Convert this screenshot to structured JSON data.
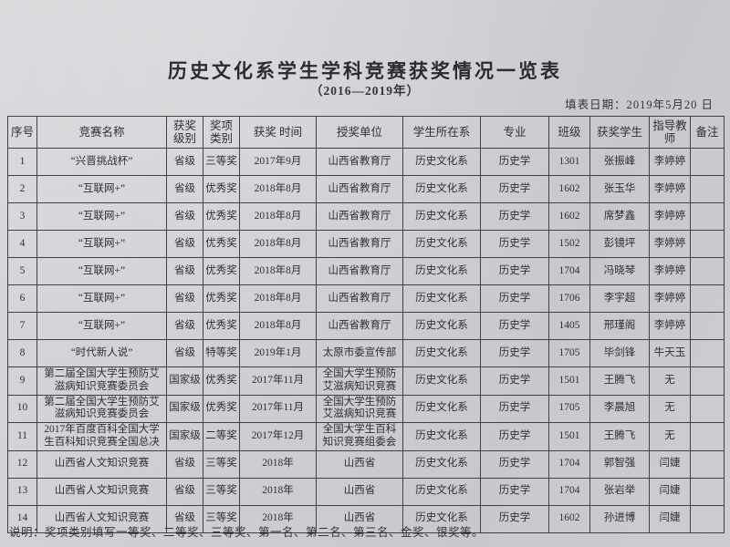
{
  "page": {
    "title": "历史文化系学生学科竞赛获奖情况一览表",
    "subtitle": "（2016—2019年）",
    "fill_date": "填表日期：2019年5月20 日",
    "footnote": "说明：奖项类别填写一等奖、二等奖、三等奖、第一名、第二名、第三名、金奖、银奖等。"
  },
  "table": {
    "column_keys": [
      "index",
      "competition",
      "level",
      "category",
      "time",
      "awarding-unit",
      "department",
      "major",
      "class",
      "student",
      "advisor",
      "remarks"
    ],
    "headers": [
      "序号",
      "竞赛名称",
      "获奖级别",
      "奖项类别",
      "获奖 时间",
      "授奖单位",
      "学生所在系",
      "专业",
      "班级",
      "获奖学生",
      "指导教师",
      "备注"
    ],
    "rows": [
      [
        "1",
        "“兴晋挑战杯”",
        "省级",
        "三等奖",
        "2017年9月",
        "山西省教育厅",
        "历史文化系",
        "历史学",
        "1301",
        "张振峰",
        "李婷婷",
        ""
      ],
      [
        "2",
        "“互联网+”",
        "省级",
        "优秀奖",
        "2018年8月",
        "山西省教育厅",
        "历史文化系",
        "历史学",
        "1602",
        "张玉华",
        "李婷婷",
        ""
      ],
      [
        "3",
        "“互联网+”",
        "省级",
        "优秀奖",
        "2018年8月",
        "山西省教育厅",
        "历史文化系",
        "历史学",
        "1602",
        "席梦鑫",
        "李婷婷",
        ""
      ],
      [
        "4",
        "“互联网+”",
        "省级",
        "优秀奖",
        "2018年8月",
        "山西省教育厅",
        "历史文化系",
        "历史学",
        "1502",
        "彭镜坪",
        "李婷婷",
        ""
      ],
      [
        "5",
        "“互联网+”",
        "省级",
        "优秀奖",
        "2018年8月",
        "山西省教育厅",
        "历史文化系",
        "历史学",
        "1704",
        "冯晓琴",
        "李婷婷",
        ""
      ],
      [
        "6",
        "“互联网+”",
        "省级",
        "优秀奖",
        "2018年8月",
        "山西省教育厅",
        "历史文化系",
        "历史学",
        "1706",
        "李宇超",
        "李婷婷",
        ""
      ],
      [
        "7",
        "“互联网+”",
        "省级",
        "优秀奖",
        "2018年8月",
        "山西省教育厅",
        "历史文化系",
        "历史学",
        "1405",
        "邢瑾阁",
        "李婷婷",
        ""
      ],
      [
        "8",
        "“时代新人说”",
        "省级",
        "特等奖",
        "2019年1月",
        "太原市委宣传部",
        "历史文化系",
        "历史学",
        "1705",
        "毕剑锋",
        "牛天玉",
        ""
      ],
      [
        "9",
        "第二届全国大学生预防艾滋病知识竞赛委员会",
        "国家级",
        "优秀奖",
        "2017年11月",
        "全国大学生预防艾滋病知识竞赛",
        "历史文化系",
        "历史学",
        "1501",
        "王腾飞",
        "无",
        ""
      ],
      [
        "10",
        "第二届全国大学生预防艾滋病知识竞赛委员会",
        "国家级",
        "优秀奖",
        "2017年11月",
        "全国大学生预防艾滋病知识竞赛",
        "历史文化系",
        "历史学",
        "1705",
        "李晨旭",
        "无",
        ""
      ],
      [
        "11",
        "2017年百度百科全国大学生百科知识竞赛全国总决",
        "国家级",
        "二等奖",
        "2017年12月",
        "全国大学生百科知识竞赛组委会",
        "历史文化系",
        "历史学",
        "1501",
        "王腾飞",
        "无",
        ""
      ],
      [
        "12",
        "山西省人文知识竞赛",
        "省级",
        "三等奖",
        "2018年",
        "山西省",
        "历史文化系",
        "历史学",
        "1704",
        "郭智强",
        "闫婕",
        ""
      ],
      [
        "13",
        "山西省人文知识竞赛",
        "省级",
        "三等奖",
        "2018年",
        "山西省",
        "历史文化系",
        "历史学",
        "1704",
        "张岩举",
        "闫婕",
        ""
      ],
      [
        "14",
        "山西省人文知识竞赛",
        "省级",
        "三等奖",
        "2018年",
        "山西省",
        "历史文化系",
        "历史学",
        "1602",
        "孙进博",
        "闫婕",
        ""
      ]
    ]
  },
  "colors": {
    "paper": "#cdcfd3",
    "ink": "#2e2f36",
    "border": "#3f4048"
  }
}
